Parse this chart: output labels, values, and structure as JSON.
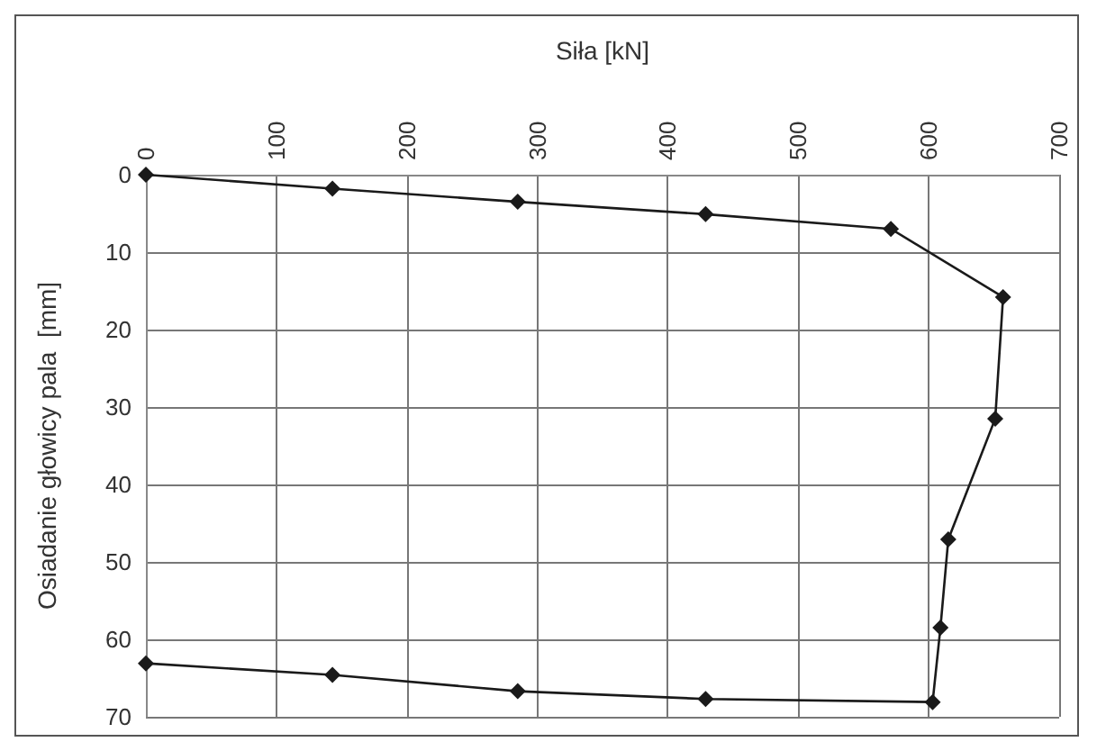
{
  "chart_data": {
    "type": "line",
    "xlabel": "Siła [kN]",
    "ylabel": "Osiadanie głowicy pala  [mm]",
    "x": [
      0,
      143,
      285,
      429,
      571,
      657,
      651,
      615,
      609,
      603,
      429,
      285,
      143,
      0
    ],
    "series": [
      {
        "color": "#1a1a1a",
        "values": [
          0,
          1.8,
          3.5,
          5.1,
          7.0,
          15.8,
          31.5,
          47.1,
          58.5,
          68.1,
          67.7,
          66.7,
          64.6,
          63.1
        ]
      }
    ],
    "xlim": [
      0,
      700
    ],
    "xticks": [
      0,
      100,
      200,
      300,
      400,
      500,
      600,
      700
    ],
    "ylim": [
      70,
      0
    ],
    "yticks": [
      0,
      10,
      20,
      30,
      40,
      50,
      60,
      70
    ],
    "grid": true,
    "marker": "diamond",
    "line_style": "solid"
  }
}
